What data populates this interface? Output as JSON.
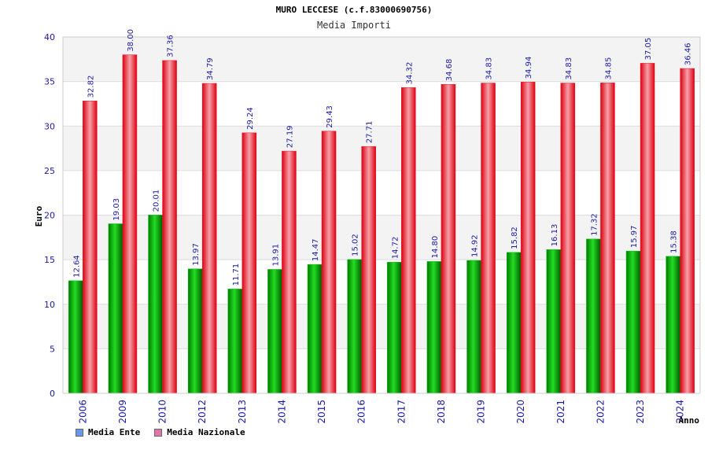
{
  "chart_data": {
    "type": "bar",
    "title": "MURO LECCESE (c.f.83000690756)",
    "subtitle": "Media Importi",
    "xlabel": "Anno",
    "ylabel": "Euro",
    "ylim": [
      0,
      40
    ],
    "yticks": [
      0,
      5,
      10,
      15,
      20,
      25,
      30,
      35,
      40
    ],
    "grid": true,
    "legend_position": "bottom-left",
    "categories": [
      "2006",
      "2009",
      "2010",
      "2012",
      "2013",
      "2014",
      "2015",
      "2016",
      "2017",
      "2018",
      "2019",
      "2020",
      "2021",
      "2022",
      "2023",
      "2024"
    ],
    "series": [
      {
        "name": "Media Ente",
        "color": "#00c000",
        "legend_color": "#6699ee",
        "values": [
          12.64,
          19.03,
          20.01,
          13.97,
          11.71,
          13.91,
          14.47,
          15.02,
          14.72,
          14.8,
          14.92,
          15.82,
          16.13,
          17.32,
          15.97,
          15.38
        ],
        "labels": [
          "12.64",
          "19.03",
          "20.01",
          "13.97",
          "11.71",
          "13.91",
          "14.47",
          "15.02",
          "14.72",
          "14.80",
          "14.92",
          "15.82",
          "16.13",
          "17.32",
          "15.97",
          "15.38"
        ]
      },
      {
        "name": "Media Nazionale",
        "color": "#ee1122",
        "legend_color": "#dd77aa",
        "values": [
          32.82,
          38.0,
          37.36,
          34.79,
          29.24,
          27.19,
          29.43,
          27.71,
          34.32,
          34.68,
          34.83,
          34.94,
          34.83,
          34.85,
          37.05,
          36.46
        ],
        "labels": [
          "32.82",
          "38.00",
          "37.36",
          "34.79",
          "29.24",
          "27.19",
          "29.43",
          "27.71",
          "34.32",
          "34.68",
          "34.83",
          "34.94",
          "34.83",
          "34.85",
          "37.05",
          "36.46"
        ]
      }
    ]
  }
}
